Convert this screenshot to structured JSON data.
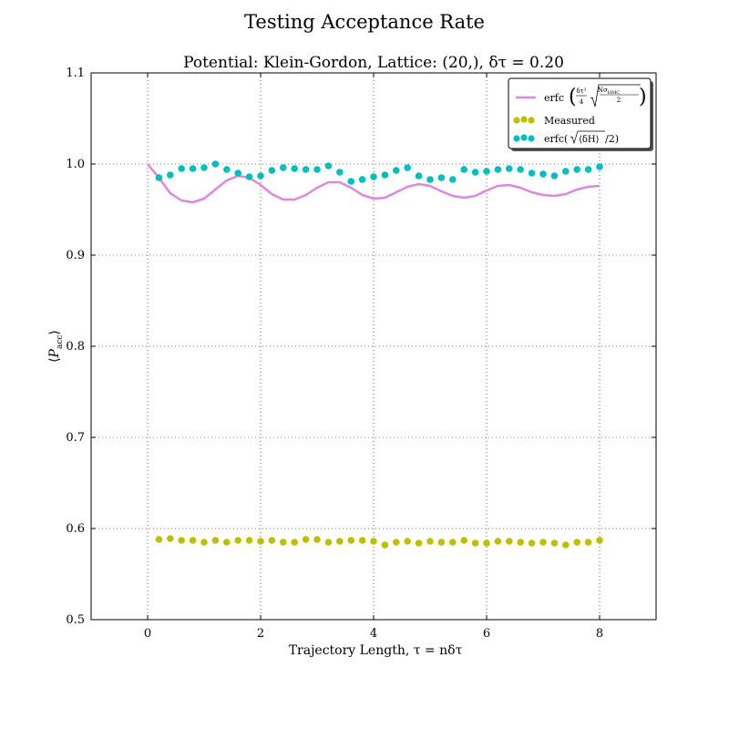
{
  "chart_data": {
    "type": "scatter",
    "suptitle": "Testing Acceptance Rate",
    "title": "Potential: Klein-Gordon, Lattice: (20,), δτ = 0.20",
    "xlabel": "Trajectory Length, τ = nδτ",
    "ylabel": "⟨P_acc⟩",
    "xlim": [
      -1,
      9
    ],
    "ylim": [
      0.5,
      1.1
    ],
    "xticks": [
      "0",
      "2",
      "4",
      "6",
      "8"
    ],
    "xtick_values": [
      0,
      2,
      4,
      6,
      8
    ],
    "yticks": [
      "0.5",
      "0.6",
      "0.7",
      "0.8",
      "0.9",
      "1.0",
      "1.1"
    ],
    "ytick_values": [
      0.5,
      0.6,
      0.7,
      0.8,
      0.9,
      1.0,
      1.1
    ],
    "grid": true,
    "legend_position": "top-right",
    "series": [
      {
        "name": "erfc(δτ²/4 √(Nσ_HMC/2))",
        "kind": "line",
        "color": "#dd88dd",
        "x": [
          0.0,
          0.2,
          0.4,
          0.6,
          0.8,
          1.0,
          1.2,
          1.4,
          1.6,
          1.8,
          2.0,
          2.2,
          2.4,
          2.6,
          2.8,
          3.0,
          3.2,
          3.4,
          3.6,
          3.8,
          4.0,
          4.2,
          4.4,
          4.6,
          4.8,
          5.0,
          5.2,
          5.4,
          5.6,
          5.8,
          6.0,
          6.2,
          6.4,
          6.6,
          6.8,
          7.0,
          7.2,
          7.4,
          7.6,
          7.8,
          8.0
        ],
        "y": [
          1.0,
          0.985,
          0.968,
          0.96,
          0.958,
          0.962,
          0.972,
          0.982,
          0.987,
          0.985,
          0.977,
          0.967,
          0.961,
          0.961,
          0.966,
          0.974,
          0.98,
          0.98,
          0.974,
          0.966,
          0.962,
          0.963,
          0.969,
          0.975,
          0.978,
          0.976,
          0.97,
          0.965,
          0.963,
          0.965,
          0.971,
          0.976,
          0.977,
          0.974,
          0.969,
          0.966,
          0.965,
          0.967,
          0.972,
          0.975,
          0.976
        ]
      },
      {
        "name": "Measured",
        "kind": "scatter",
        "color": "#bfbf00",
        "x": [
          0.2,
          0.4,
          0.6,
          0.8,
          1.0,
          1.2,
          1.4,
          1.6,
          1.8,
          2.0,
          2.2,
          2.4,
          2.6,
          2.8,
          3.0,
          3.2,
          3.4,
          3.6,
          3.8,
          4.0,
          4.2,
          4.4,
          4.6,
          4.8,
          5.0,
          5.2,
          5.4,
          5.6,
          5.8,
          6.0,
          6.2,
          6.4,
          6.6,
          6.8,
          7.0,
          7.2,
          7.4,
          7.6,
          7.8,
          8.0
        ],
        "y": [
          0.588,
          0.589,
          0.587,
          0.587,
          0.585,
          0.587,
          0.585,
          0.587,
          0.587,
          0.586,
          0.587,
          0.585,
          0.585,
          0.588,
          0.588,
          0.585,
          0.586,
          0.587,
          0.587,
          0.586,
          0.582,
          0.585,
          0.586,
          0.584,
          0.586,
          0.585,
          0.585,
          0.587,
          0.584,
          0.584,
          0.586,
          0.586,
          0.585,
          0.584,
          0.585,
          0.584,
          0.582,
          0.585,
          0.585,
          0.587
        ]
      },
      {
        "name": "erfc(√⟨δH⟩/2)",
        "kind": "scatter",
        "color": "#00bfbf",
        "x": [
          0.2,
          0.4,
          0.6,
          0.8,
          1.0,
          1.2,
          1.4,
          1.6,
          1.8,
          2.0,
          2.2,
          2.4,
          2.6,
          2.8,
          3.0,
          3.2,
          3.4,
          3.6,
          3.8,
          4.0,
          4.2,
          4.4,
          4.6,
          4.8,
          5.0,
          5.2,
          5.4,
          5.6,
          5.8,
          6.0,
          6.2,
          6.4,
          6.6,
          6.8,
          7.0,
          7.2,
          7.4,
          7.6,
          7.8,
          8.0
        ],
        "y": [
          0.985,
          0.988,
          0.995,
          0.995,
          0.996,
          1.0,
          0.994,
          0.99,
          0.986,
          0.987,
          0.993,
          0.996,
          0.995,
          0.994,
          0.994,
          0.998,
          0.991,
          0.981,
          0.983,
          0.986,
          0.988,
          0.993,
          0.996,
          0.987,
          0.983,
          0.985,
          0.983,
          0.994,
          0.991,
          0.992,
          0.994,
          0.995,
          0.994,
          0.99,
          0.989,
          0.987,
          0.992,
          0.994,
          0.994,
          0.997
        ]
      }
    ],
    "legend": {
      "line_label_prefix": "erfc",
      "line_frac_num": "δτ²",
      "line_frac_den": "4",
      "line_sqrt_num": "Nσ",
      "line_sqrt_sub": "HMC",
      "line_sqrt_den": "2",
      "measured_label": "Measured",
      "cyan_label_prefix": "erfc(",
      "cyan_label_sqrt": "⟨δH⟩",
      "cyan_label_suffix": "/2)"
    }
  }
}
